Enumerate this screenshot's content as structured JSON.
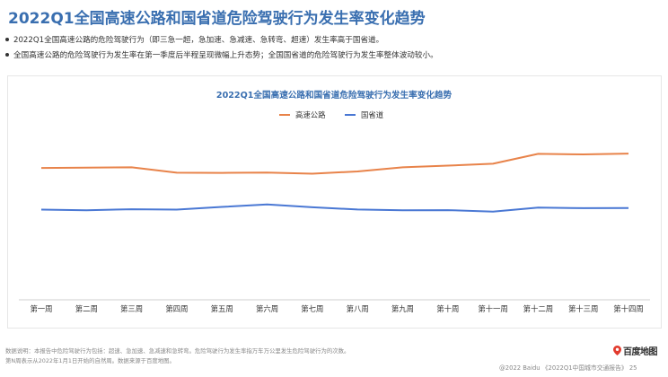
{
  "page": {
    "title": "2022Q1全国高速公路和国省道危险驾驶行为发生率变化趋势",
    "bullets": [
      "2022Q1全国高速公路的危险驾驶行为（即三急一超，急加速、急减速、急转弯、超速）发生率高于国省道。",
      "全国高速公路的危险驾驶行为发生率在第一季度后半程呈现微幅上升态势；全国国省道的危险驾驶行为发生率整体波动较小。"
    ],
    "footer_lines": [
      "数据说明：本报告中危险驾驶行为包括：超速、急加速、急减速和急转弯。危险驾驶行为发生率指万车万公里发生危险驾驶行为的次数。",
      "第N周表示从2022年1月1日开始的自然周。数据来源于百度地图。"
    ],
    "logo_text": "百度地图",
    "copyright": "@2022 Baidu 《2022Q1中国城市交通报告》 25"
  },
  "colors": {
    "title": "#3a6fb0",
    "highway": "#e8834a",
    "provincial": "#4a78d4"
  },
  "chart_data": {
    "type": "line",
    "title": "2022Q1全国高速公路和国省道危险驾驶行为发生率变化趋势",
    "categories": [
      "第一周",
      "第二周",
      "第三周",
      "第四周",
      "第五周",
      "第六周",
      "第七周",
      "第八周",
      "第九周",
      "第十周",
      "第十一周",
      "第十二周",
      "第十三周",
      "第十四周"
    ],
    "series": [
      {
        "name": "高速公路",
        "color": "#e8834a",
        "values": [
          72.2,
          72.6,
          73.0,
          66.2,
          66.0,
          66.4,
          65.0,
          67.8,
          73.0,
          75.2,
          77.5,
          90.0,
          89.4,
          90.4
        ]
      },
      {
        "name": "国省道",
        "color": "#4a78d4",
        "values": [
          19.5,
          18.7,
          20.0,
          19.5,
          23.0,
          26.0,
          22.5,
          19.7,
          18.7,
          18.9,
          17.0,
          22.0,
          21.4,
          21.6
        ]
      }
    ],
    "ylim": [
      -90,
      120
    ],
    "legend_position": "top-center",
    "grid": false,
    "y_axis_visible": false
  }
}
